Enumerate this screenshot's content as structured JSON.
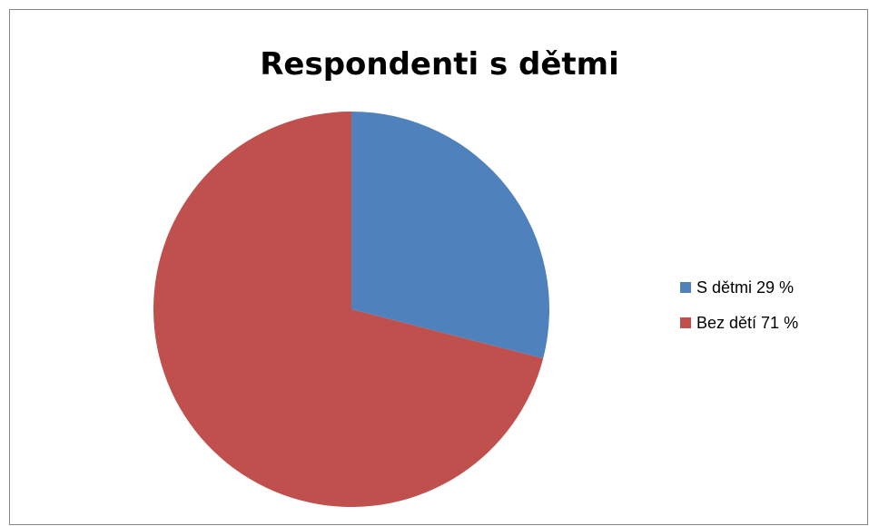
{
  "chart_data": {
    "type": "pie",
    "title": "Respondenti s dětmi",
    "slices": [
      {
        "label": "S dětmi 29 %",
        "value": 29,
        "color": "#4F81BD"
      },
      {
        "label": "Bez dětí 71 %",
        "value": 71,
        "color": "#C0504D"
      }
    ],
    "start_angle_deg": 0,
    "direction": "clockwise",
    "legend_position": "right"
  }
}
